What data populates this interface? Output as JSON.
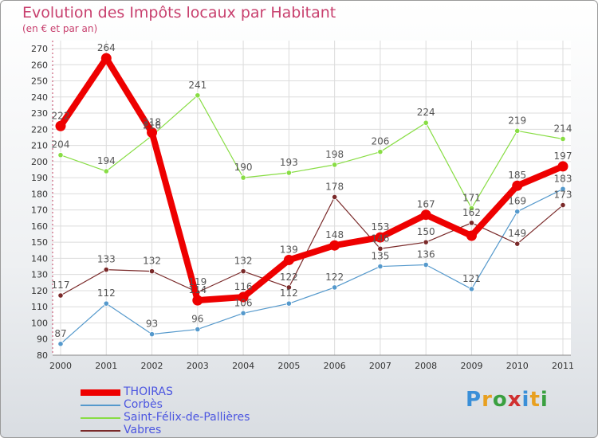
{
  "header": {
    "title": "Evolution des Impôts locaux par Habitant",
    "subtitle": "(en € et par an)"
  },
  "logo": {
    "text": "Proxiti",
    "letters": [
      "P",
      "r",
      "o",
      "x",
      "i",
      "t",
      "i"
    ],
    "letter_colors": [
      "#3a8fd8",
      "#e8a020",
      "#3aa040",
      "#d03030",
      "#3a8fd8",
      "#e8a020",
      "#3aa040"
    ]
  },
  "chart_data": {
    "type": "line",
    "title": "Evolution des Impôts locaux par Habitant",
    "subtitle": "(en € et par an)",
    "xlabel": "",
    "ylabel": "",
    "x": [
      "2000",
      "2001",
      "2002",
      "2003",
      "2004",
      "2005",
      "2006",
      "2007",
      "2008",
      "2009",
      "2010",
      "2011"
    ],
    "ylim": [
      80,
      270
    ],
    "yticks": [
      80,
      90,
      100,
      110,
      120,
      130,
      140,
      150,
      160,
      170,
      180,
      190,
      200,
      210,
      220,
      230,
      240,
      250,
      260,
      270
    ],
    "grid": true,
    "legend_position": "bottom-left",
    "series": [
      {
        "name": "THOIRAS",
        "color": "#ee0000",
        "values": [
          222,
          264,
          218,
          114,
          116,
          139,
          148,
          153,
          167,
          154,
          185,
          197
        ],
        "labels": [
          "222",
          "264",
          "218",
          "114",
          "116",
          "139",
          "148",
          "153",
          "167",
          "",
          "185",
          "197"
        ]
      },
      {
        "name": "Corbès",
        "color": "#5599cc",
        "values": [
          87,
          112,
          93,
          96,
          106,
          112,
          122,
          135,
          136,
          121,
          169,
          183
        ],
        "labels": [
          "87",
          "112",
          "93",
          "96",
          "106",
          "112",
          "122",
          "135",
          "136",
          "121",
          "169",
          "183"
        ]
      },
      {
        "name": "Saint-Félix-de-Pallières",
        "color": "#88dd44",
        "values": [
          204,
          194,
          216,
          241,
          190,
          193,
          198,
          206,
          224,
          171,
          219,
          214
        ],
        "labels": [
          "204",
          "194",
          "216",
          "241",
          "190",
          "193",
          "198",
          "206",
          "224",
          "171",
          "219",
          "214"
        ]
      },
      {
        "name": "Vabres",
        "color": "#7a2a2a",
        "values": [
          117,
          133,
          132,
          119,
          132,
          122,
          178,
          146,
          150,
          162,
          149,
          173
        ],
        "labels": [
          "117",
          "133",
          "132",
          "119",
          "132",
          "122",
          "178",
          "146",
          "150",
          "162",
          "149",
          "173"
        ]
      }
    ]
  }
}
